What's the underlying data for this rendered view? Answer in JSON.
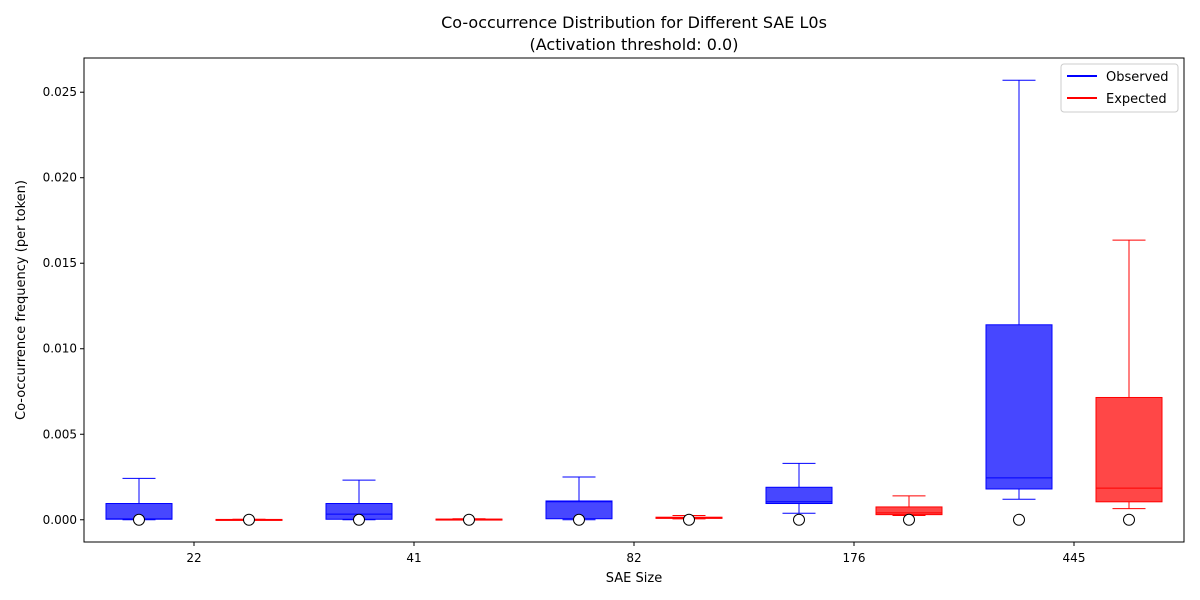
{
  "chart_data": {
    "type": "box",
    "title_line1": "Co-occurrence Distribution for Different SAE L0s",
    "title_line2": "(Activation threshold: 0.0)",
    "xlabel": "SAE Size",
    "ylabel": "Co-occurrence frequency (per token)",
    "ylim": [
      -0.0013,
      0.027
    ],
    "yticks": [
      0.0,
      0.005,
      0.01,
      0.015,
      0.02,
      0.025
    ],
    "ytick_labels": [
      "0.000",
      "0.005",
      "0.010",
      "0.015",
      "0.020",
      "0.025"
    ],
    "categories": [
      "22",
      "41",
      "82",
      "176",
      "445"
    ],
    "legend": [
      {
        "label": "Observed",
        "color": "#0000ff"
      },
      {
        "label": "Expected",
        "color": "#ff0000"
      }
    ],
    "colors": {
      "observed": "#0000ff",
      "expected": "#ff0000"
    },
    "series": [
      {
        "name": "Observed",
        "boxes": [
          {
            "whislo": 0.0,
            "q1": 3e-05,
            "median": 5e-05,
            "q3": 0.00095,
            "whishi": 0.00242,
            "flier": 0.0
          },
          {
            "whislo": 0.0,
            "q1": 3e-05,
            "median": 0.00033,
            "q3": 0.00095,
            "whishi": 0.00232,
            "flier": 0.0
          },
          {
            "whislo": 0.0,
            "q1": 6e-05,
            "median": 0.00105,
            "q3": 0.0011,
            "whishi": 0.0025,
            "flier": 0.0
          },
          {
            "whislo": 0.00038,
            "q1": 0.00095,
            "median": 0.00105,
            "q3": 0.0019,
            "whishi": 0.0033,
            "flier": 0.0
          },
          {
            "whislo": 0.0012,
            "q1": 0.0018,
            "median": 0.00245,
            "q3": 0.0114,
            "whishi": 0.0257,
            "flier": 0.0
          }
        ]
      },
      {
        "name": "Expected",
        "boxes": [
          {
            "whislo": 0.0,
            "q1": 0.0,
            "median": 0.0,
            "q3": 2e-05,
            "whishi": 3e-05,
            "flier": 0.0
          },
          {
            "whislo": 0.0,
            "q1": 1e-05,
            "median": 2e-05,
            "q3": 4e-05,
            "whishi": 6e-05,
            "flier": 0.0
          },
          {
            "whislo": 5e-05,
            "q1": 8e-05,
            "median": 0.00011,
            "q3": 0.00015,
            "whishi": 0.00025,
            "flier": 0.0
          },
          {
            "whislo": 0.00025,
            "q1": 0.0003,
            "median": 0.0004,
            "q3": 0.00075,
            "whishi": 0.0014,
            "flier": 0.0
          },
          {
            "whislo": 0.00065,
            "q1": 0.00105,
            "median": 0.00185,
            "q3": 0.00715,
            "whishi": 0.01635,
            "flier": 0.0
          }
        ]
      }
    ]
  }
}
